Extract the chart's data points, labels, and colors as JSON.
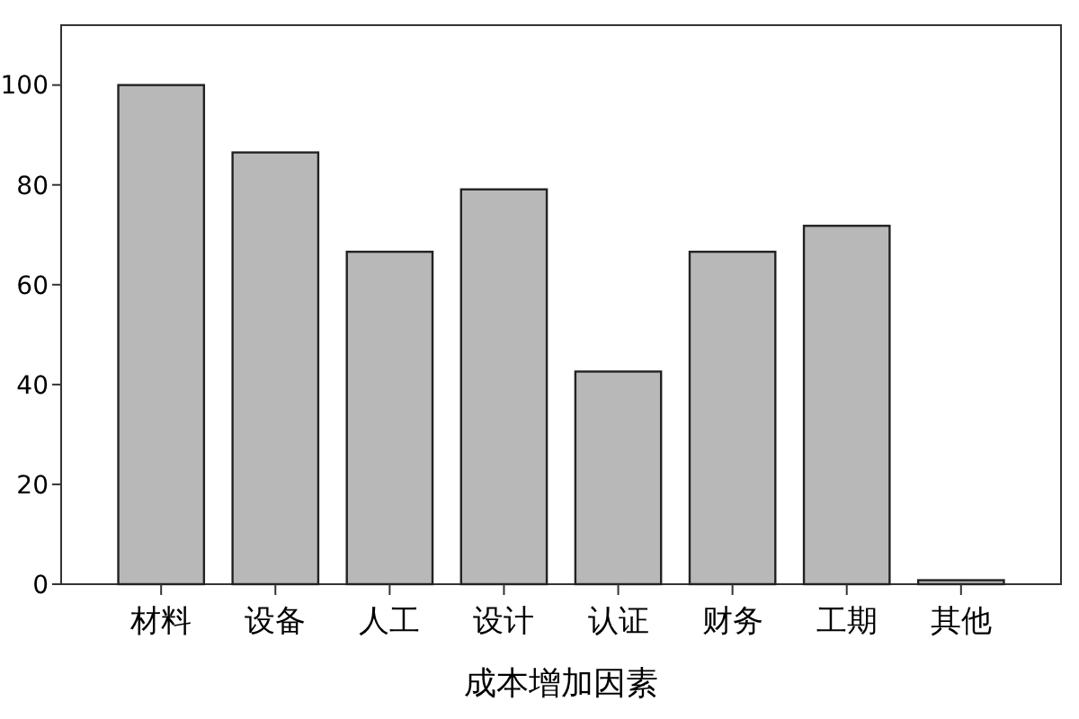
{
  "chart_data": {
    "type": "bar",
    "xlabel": "成本增加因素",
    "categories": [
      "材料",
      "设备",
      "人工",
      "设计",
      "认证",
      "财务",
      "工期",
      "其他"
    ],
    "values": [
      100,
      86.5,
      66.6,
      79.1,
      42.6,
      66.6,
      71.8,
      0.8
    ],
    "color": "#b8b8b8",
    "ylim": [
      0,
      112
    ],
    "yticks": [
      0,
      20,
      40,
      60,
      80,
      100
    ],
    "grid": false
  }
}
